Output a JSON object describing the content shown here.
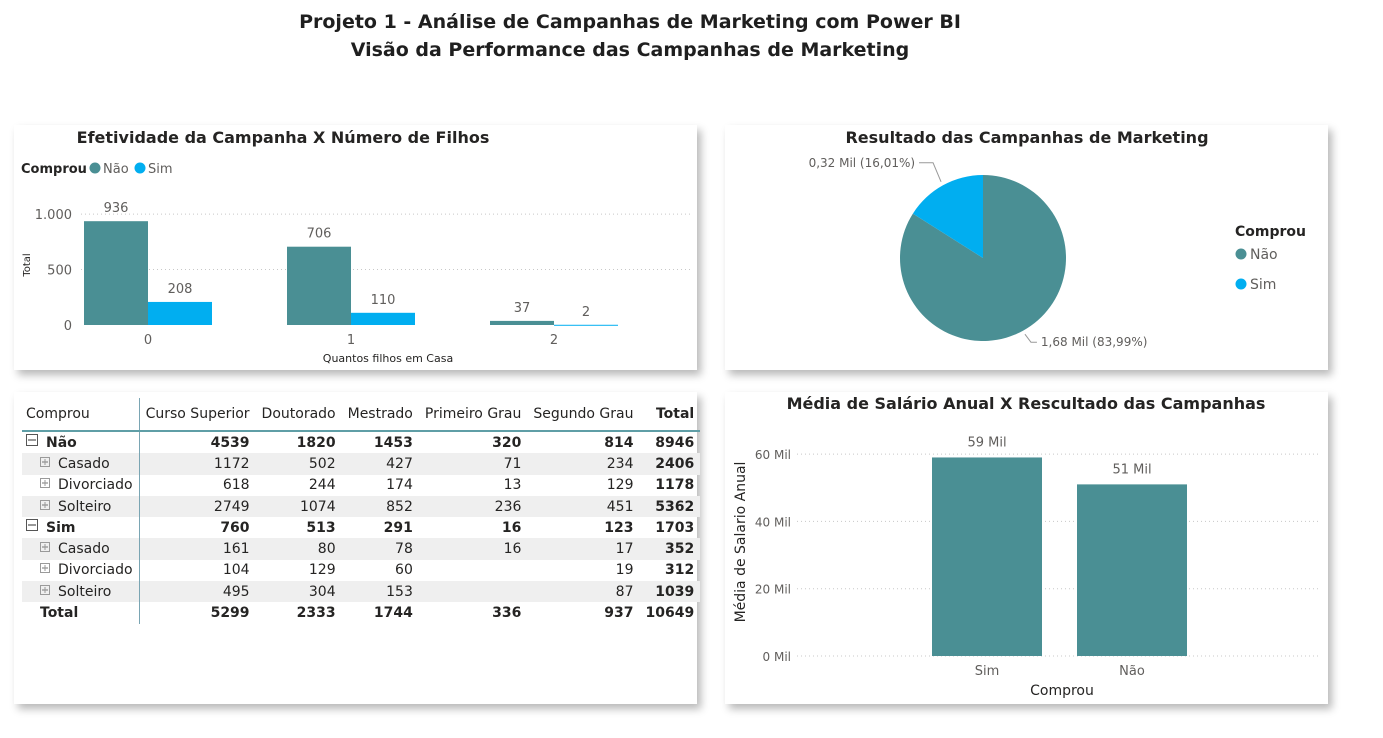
{
  "header": {
    "title_line1": "Projeto 1 - Análise de Campanhas de Marketing com Power BI",
    "title_line2": "Visão da Performance das Campanhas de Marketing"
  },
  "colors": {
    "nao": "#4a8f94",
    "sim": "#01aef0",
    "grid": "#c8c8c8"
  },
  "chart_data": [
    {
      "id": "filhos",
      "type": "bar",
      "title": "Efetividade da Campanha X Número de Filhos",
      "xlabel": "Quantos filhos em Casa",
      "ylabel": "Total",
      "legend_title": "Comprou",
      "legend_position": "top-left",
      "categories": [
        "0",
        "1",
        "2"
      ],
      "series": [
        {
          "name": "Não",
          "values": [
            936,
            706,
            37
          ]
        },
        {
          "name": "Sim",
          "values": [
            208,
            110,
            2
          ]
        }
      ],
      "ylim": [
        0,
        1100
      ],
      "yticks": [
        0,
        500,
        1000
      ],
      "ytick_labels": [
        "0",
        "500",
        "1.000"
      ],
      "grid": true
    },
    {
      "id": "resultado",
      "type": "pie",
      "title": "Resultado das Campanhas de Marketing",
      "legend_title": "Comprou",
      "legend_position": "right",
      "slices": [
        {
          "name": "Não",
          "value": 1.68,
          "percent": 83.99,
          "label": "1,68 Mil (83,99%)"
        },
        {
          "name": "Sim",
          "value": 0.32,
          "percent": 16.01,
          "label": "0,32 Mil (16,01%)"
        }
      ]
    },
    {
      "id": "salario",
      "type": "bar",
      "title": "Média de Salário Anual X Resultado das Campanhas",
      "title_display": "Média de Salário Anual X Rescultado das Campanhas",
      "xlabel": "Comprou",
      "ylabel": "Média de Salario Anual",
      "categories": [
        "Sim",
        "Não"
      ],
      "values": [
        59,
        51
      ],
      "value_labels": [
        "59 Mil",
        "51 Mil"
      ],
      "ylim": [
        0,
        63
      ],
      "yticks": [
        0,
        20,
        40,
        60
      ],
      "ytick_labels": [
        "0 Mil",
        "20 Mil",
        "40 Mil",
        "60 Mil"
      ],
      "grid": true
    },
    {
      "id": "matriz",
      "type": "table",
      "row_header": "Comprou",
      "columns": [
        "Curso Superior",
        "Doutorado",
        "Mestrado",
        "Primeiro Grau",
        "Segundo Grau",
        "Total"
      ],
      "groups": [
        {
          "label": "Não",
          "values": [
            "4539",
            "1820",
            "1453",
            "320",
            "814",
            "8946"
          ],
          "rows": [
            {
              "label": "Casado",
              "values": [
                "1172",
                "502",
                "427",
                "71",
                "234",
                "2406"
              ]
            },
            {
              "label": "Divorciado",
              "values": [
                "618",
                "244",
                "174",
                "13",
                "129",
                "1178"
              ]
            },
            {
              "label": "Solteiro",
              "values": [
                "2749",
                "1074",
                "852",
                "236",
                "451",
                "5362"
              ]
            }
          ]
        },
        {
          "label": "Sim",
          "values": [
            "760",
            "513",
            "291",
            "16",
            "123",
            "1703"
          ],
          "rows": [
            {
              "label": "Casado",
              "values": [
                "161",
                "80",
                "78",
                "16",
                "17",
                "352"
              ]
            },
            {
              "label": "Divorciado",
              "values": [
                "104",
                "129",
                "60",
                "",
                "19",
                "312"
              ]
            },
            {
              "label": "Solteiro",
              "values": [
                "495",
                "304",
                "153",
                "",
                "87",
                "1039"
              ]
            }
          ]
        }
      ],
      "total": {
        "label": "Total",
        "values": [
          "5299",
          "2333",
          "1744",
          "336",
          "937",
          "10649"
        ]
      }
    }
  ]
}
